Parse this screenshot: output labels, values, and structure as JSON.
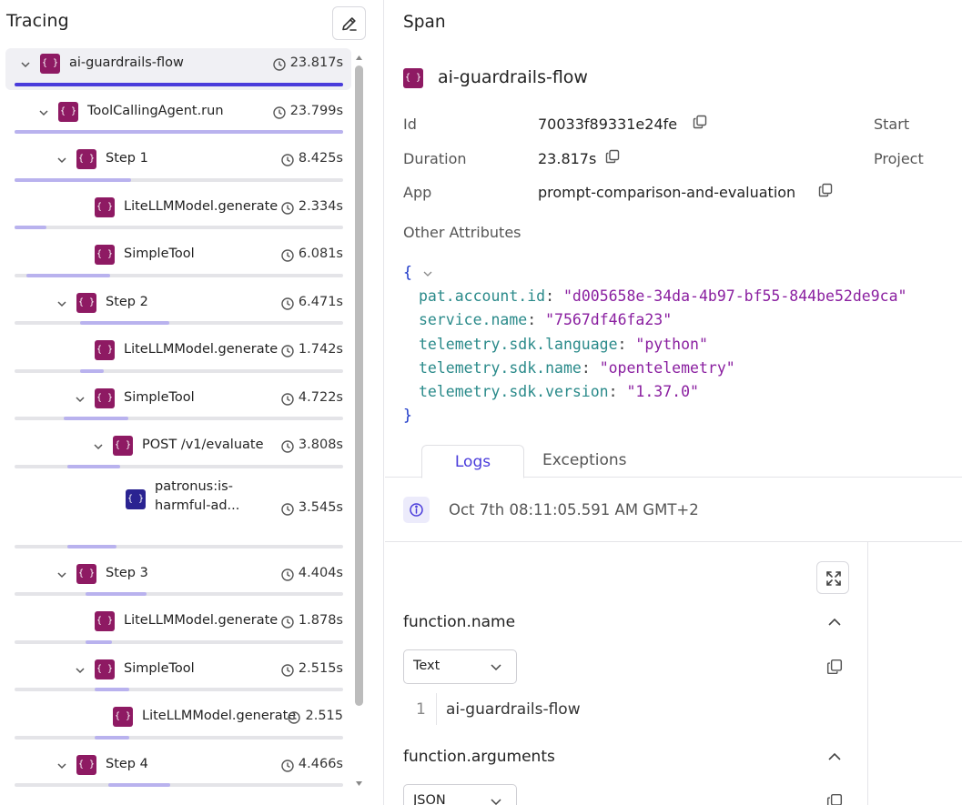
{
  "left": {
    "title": "Tracing",
    "edit_icon": "edit-icon",
    "tree": [
      {
        "id": "n0",
        "label": "ai-guardrails-flow",
        "duration": "23.817s",
        "depth": 0,
        "expanded": true,
        "selected": true,
        "icon": "braces-icon",
        "bar_start": 0.0,
        "bar_width": 1.0
      },
      {
        "id": "n1",
        "label": "ToolCallingAgent.run",
        "duration": "23.799s",
        "depth": 1,
        "expanded": true,
        "icon": "braces-icon",
        "bar_start": 0.0,
        "bar_width": 0.999
      },
      {
        "id": "n2",
        "label": "Step 1",
        "duration": "8.425s",
        "depth": 2,
        "expanded": true,
        "icon": "braces-icon",
        "bar_start": 0.0,
        "bar_width": 0.354
      },
      {
        "id": "n3",
        "label": "LiteLLMModel.generate",
        "duration": "2.334s",
        "depth": 3,
        "icon": "braces-icon",
        "bar_start": 0.0,
        "bar_width": 0.098
      },
      {
        "id": "n4",
        "label": "SimpleTool",
        "duration": "6.081s",
        "depth": 3,
        "icon": "braces-icon",
        "bar_start": 0.035,
        "bar_width": 0.255
      },
      {
        "id": "n5",
        "label": "Step 2",
        "duration": "6.471s",
        "depth": 2,
        "expanded": true,
        "icon": "braces-icon",
        "bar_start": 0.2,
        "bar_width": 0.272
      },
      {
        "id": "n6",
        "label": "LiteLLMModel.generate",
        "duration": "1.742s",
        "depth": 3,
        "icon": "braces-icon",
        "bar_start": 0.2,
        "bar_width": 0.073
      },
      {
        "id": "n7",
        "label": "SimpleTool",
        "duration": "4.722s",
        "depth": 3,
        "expanded": true,
        "icon": "braces-icon",
        "bar_start": 0.15,
        "bar_width": 0.198
      },
      {
        "id": "n8",
        "label": "POST /v1/evaluate",
        "duration": "3.808s",
        "depth": 4,
        "expanded": true,
        "icon": "braces-icon",
        "bar_start": 0.16,
        "bar_width": 0.16
      },
      {
        "id": "n9",
        "label": "patronus:is-harmful-ad...",
        "duration": "3.545s",
        "depth": 5,
        "icon": "braces-icon",
        "alt": true,
        "two_line": true,
        "bar_start": 0.16,
        "bar_width": 0.149
      },
      {
        "id": "n10",
        "label": "Step 3",
        "duration": "4.404s",
        "depth": 2,
        "expanded": true,
        "icon": "braces-icon",
        "bar_start": 0.215,
        "bar_width": 0.185
      },
      {
        "id": "n11",
        "label": "LiteLLMModel.generate",
        "duration": "1.878s",
        "depth": 3,
        "icon": "braces-icon",
        "bar_start": 0.215,
        "bar_width": 0.079
      },
      {
        "id": "n12",
        "label": "SimpleTool",
        "duration": "2.515s",
        "depth": 3,
        "expanded": true,
        "icon": "braces-icon",
        "bar_start": 0.245,
        "bar_width": 0.106
      },
      {
        "id": "n13",
        "label": "LiteLLMModel.generate",
        "duration": "2.515",
        "depth": 4,
        "icon": "braces-icon",
        "bar_start": 0.245,
        "bar_width": 0.106
      },
      {
        "id": "n14",
        "label": "Step 4",
        "duration": "4.466s",
        "depth": 2,
        "expanded": true,
        "icon": "braces-icon",
        "bar_start": 0.285,
        "bar_width": 0.188
      }
    ]
  },
  "right": {
    "title": "Span",
    "span_name": "ai-guardrails-flow",
    "attributes": {
      "id_label": "Id",
      "id_value": "70033f89331e24fe",
      "duration_label": "Duration",
      "duration_value": "23.817s",
      "app_label": "App",
      "app_value": "prompt-comparison-and-evaluation",
      "start_label": "Start",
      "project_label": "Project"
    },
    "other_attributes_label": "Other Attributes",
    "json": {
      "open": "{",
      "close": "}",
      "entries": [
        {
          "key": "pat.account.id",
          "value": "\"d005658e-34da-4b97-bf55-844be52de9ca\""
        },
        {
          "key": "service.name",
          "value": "\"7567df46fa23\""
        },
        {
          "key": "telemetry.sdk.language",
          "value": "\"python\""
        },
        {
          "key": "telemetry.sdk.name",
          "value": "\"opentelemetry\""
        },
        {
          "key": "telemetry.sdk.version",
          "value": "\"1.37.0\""
        }
      ]
    },
    "tabs": {
      "logs": "Logs",
      "exceptions": "Exceptions",
      "active": "logs"
    },
    "log_timestamp": "Oct 7th 08:11:05.591 AM GMT+2",
    "detail": {
      "sections": [
        {
          "title": "function.name",
          "format": "Text",
          "line_number": "1",
          "value": "ai-guardrails-flow"
        },
        {
          "title": "function.arguments",
          "format": "JSON"
        }
      ]
    }
  },
  "colors": {
    "accent": "#4a3cdb",
    "span_icon": "#8e1a63",
    "alt_icon": "#2a2391",
    "bar_light": "#b9b2ee",
    "json_key": "#2a8a8a",
    "json_string": "#8a1fa0"
  }
}
